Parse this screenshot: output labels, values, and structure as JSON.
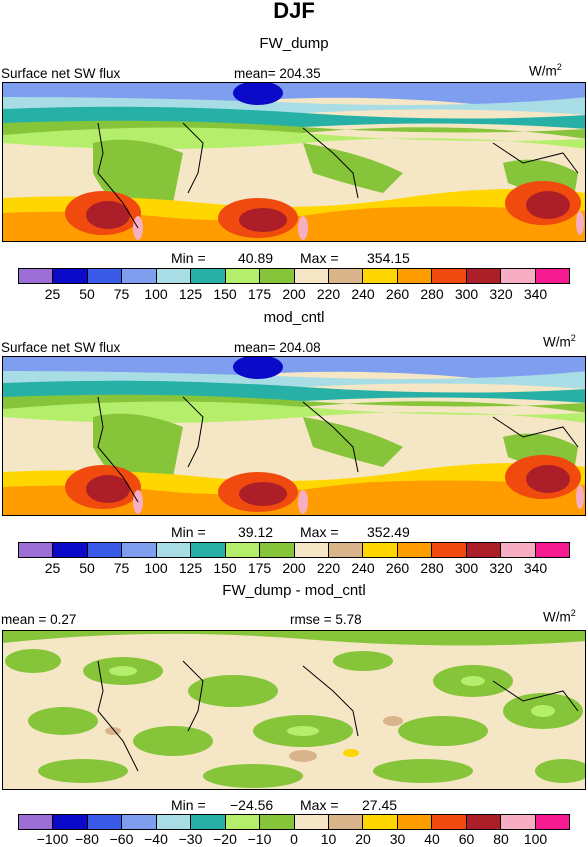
{
  "figure_title": "DJF",
  "unit_base": "W/m",
  "unit_sup": "2",
  "panels": [
    {
      "title": "FW_dump",
      "left_label": "Surface net SW flux",
      "center_label": "mean= 204.35",
      "min_label": "Min =",
      "min_value": "40.89",
      "max_label": "Max =",
      "max_value": "354.15",
      "colorbar": {
        "colors": [
          "#9b6fd6",
          "#0a0ac8",
          "#3a5ae8",
          "#7f9ef0",
          "#a9dde6",
          "#27b0a6",
          "#b5ee6a",
          "#86c43a",
          "#f5e7c6",
          "#d9b38a",
          "#ffd600",
          "#ff9c00",
          "#f04a0e",
          "#ad1f28",
          "#f8aec2",
          "#f51a8f"
        ],
        "ticks": [
          "25",
          "50",
          "75",
          "100",
          "125",
          "150",
          "175",
          "200",
          "220",
          "240",
          "260",
          "280",
          "300",
          "320",
          "340"
        ]
      }
    },
    {
      "title": "mod_cntl",
      "left_label": "Surface net SW flux",
      "center_label": "mean= 204.08",
      "min_label": "Min =",
      "min_value": "39.12",
      "max_label": "Max =",
      "max_value": "352.49",
      "colorbar": {
        "colors": [
          "#9b6fd6",
          "#0a0ac8",
          "#3a5ae8",
          "#7f9ef0",
          "#a9dde6",
          "#27b0a6",
          "#b5ee6a",
          "#86c43a",
          "#f5e7c6",
          "#d9b38a",
          "#ffd600",
          "#ff9c00",
          "#f04a0e",
          "#ad1f28",
          "#f8aec2",
          "#f51a8f"
        ],
        "ticks": [
          "25",
          "50",
          "75",
          "100",
          "125",
          "150",
          "175",
          "200",
          "220",
          "240",
          "260",
          "280",
          "300",
          "320",
          "340"
        ]
      }
    },
    {
      "title": "FW_dump - mod_cntl",
      "left_label": "mean =   0.27",
      "center_label": "rmse =   5.78",
      "min_label": "Min =",
      "min_value": "−24.56",
      "max_label": "Max =",
      "max_value": "27.45",
      "colorbar": {
        "colors": [
          "#9b6fd6",
          "#0a0ac8",
          "#3a5ae8",
          "#7f9ef0",
          "#a9dde6",
          "#27b0a6",
          "#b5ee6a",
          "#86c43a",
          "#f5e7c6",
          "#d9b38a",
          "#ffd600",
          "#ff9c00",
          "#f04a0e",
          "#ad1f28",
          "#f8aec2",
          "#f51a8f"
        ],
        "ticks": [
          "−100",
          "−80",
          "−60",
          "−40",
          "−30",
          "−20",
          "−10",
          "0",
          "10",
          "20",
          "30",
          "40",
          "60",
          "80",
          "100"
        ]
      }
    }
  ]
}
